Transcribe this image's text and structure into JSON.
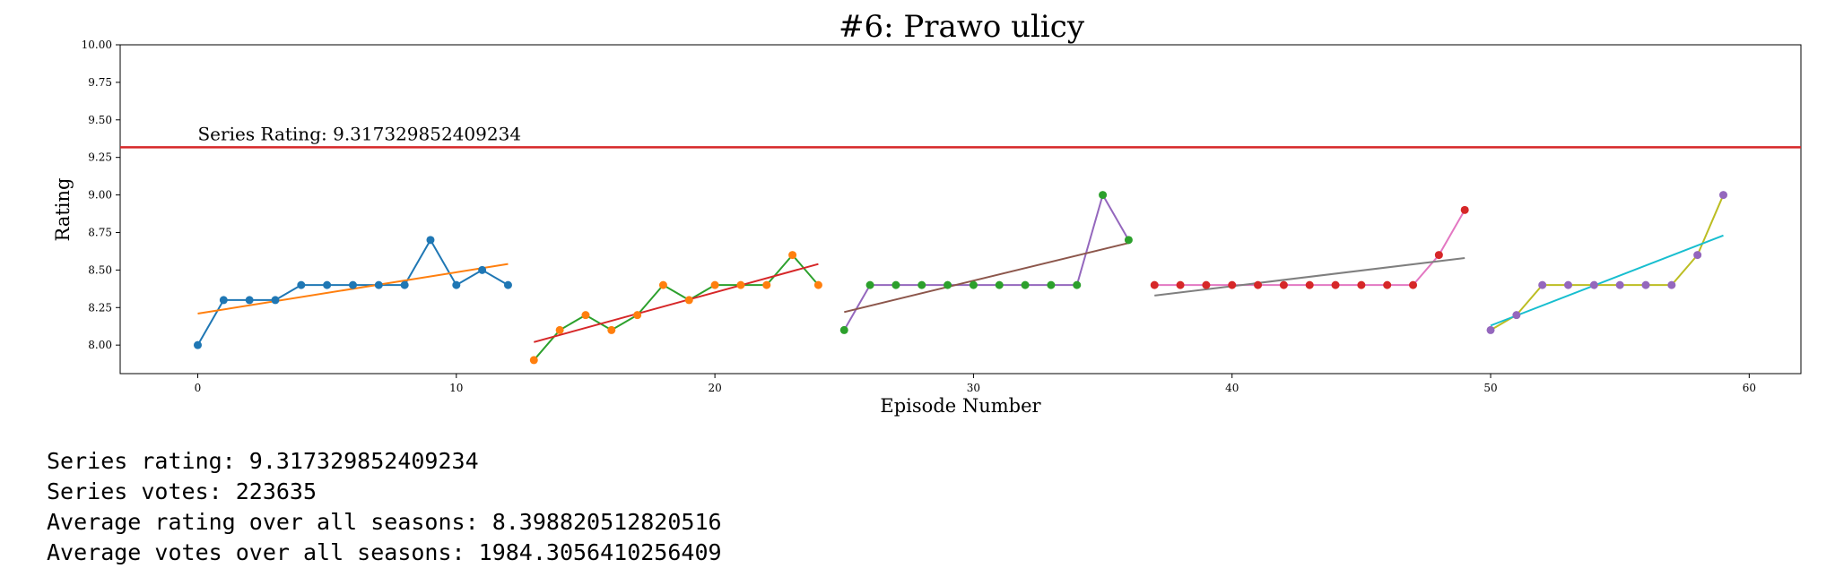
{
  "chart_data": {
    "type": "line",
    "title": "#6: Prawo ulicy",
    "xlabel": "Episode Number",
    "ylabel": "Rating",
    "xlim": [
      -3,
      62
    ],
    "ylim": [
      7.81,
      10.0
    ],
    "xticks": [
      0,
      10,
      20,
      30,
      40,
      50,
      60
    ],
    "yticks": [
      8.0,
      8.25,
      8.5,
      8.75,
      9.0,
      9.25,
      9.5,
      9.75,
      10.0
    ],
    "ytick_labels": [
      "8.00",
      "8.25",
      "8.50",
      "8.75",
      "9.00",
      "9.25",
      "9.50",
      "9.75",
      "10.00"
    ],
    "grid": false,
    "series_rating_line": {
      "value": 9.317329852409234,
      "label": "Series Rating: 9.317329852409234",
      "label_x": 0,
      "color": "#d62728"
    },
    "seasons": [
      {
        "x": [
          0,
          1,
          2,
          3,
          4,
          5,
          6,
          7,
          8,
          9,
          10,
          11,
          12
        ],
        "y": [
          8.0,
          8.3,
          8.3,
          8.3,
          8.4,
          8.4,
          8.4,
          8.4,
          8.4,
          8.7,
          8.4,
          8.5,
          8.4
        ],
        "line_color": "#1f77b4",
        "marker_color": "#1f77b4",
        "trend": {
          "x": [
            0,
            12
          ],
          "y": [
            8.21,
            8.54
          ],
          "color": "#ff7f0e"
        }
      },
      {
        "x": [
          13,
          14,
          15,
          16,
          17,
          18,
          19,
          20,
          21,
          22,
          23,
          24
        ],
        "y": [
          7.9,
          8.1,
          8.2,
          8.1,
          8.2,
          8.4,
          8.3,
          8.4,
          8.4,
          8.4,
          8.6,
          8.4
        ],
        "line_color": "#2ca02c",
        "marker_color": "#ff7f0e",
        "trend": {
          "x": [
            13,
            24
          ],
          "y": [
            8.02,
            8.54
          ],
          "color": "#d62728"
        }
      },
      {
        "x": [
          25,
          26,
          27,
          28,
          29,
          30,
          31,
          32,
          33,
          34,
          35,
          36
        ],
        "y": [
          8.1,
          8.4,
          8.4,
          8.4,
          8.4,
          8.4,
          8.4,
          8.4,
          8.4,
          8.4,
          9.0,
          8.7
        ],
        "line_color": "#9467bd",
        "marker_color": "#2ca02c",
        "trend": {
          "x": [
            25,
            36
          ],
          "y": [
            8.22,
            8.68
          ],
          "color": "#8c564b"
        }
      },
      {
        "x": [
          37,
          38,
          39,
          40,
          41,
          42,
          43,
          44,
          45,
          46,
          47,
          48,
          49
        ],
        "y": [
          8.4,
          8.4,
          8.4,
          8.4,
          8.4,
          8.4,
          8.4,
          8.4,
          8.4,
          8.4,
          8.4,
          8.6,
          8.9
        ],
        "line_color": "#e377c2",
        "marker_color": "#d62728",
        "trend": {
          "x": [
            37,
            49
          ],
          "y": [
            8.33,
            8.58
          ],
          "color": "#7f7f7f"
        }
      },
      {
        "x": [
          50,
          51,
          52,
          53,
          54,
          55,
          56,
          57,
          58,
          59
        ],
        "y": [
          8.1,
          8.2,
          8.4,
          8.4,
          8.4,
          8.4,
          8.4,
          8.4,
          8.6,
          9.0
        ],
        "line_color": "#bcbd22",
        "marker_color": "#9467bd",
        "trend": {
          "x": [
            50,
            59
          ],
          "y": [
            8.13,
            8.73
          ],
          "color": "#17becf"
        }
      }
    ]
  },
  "stats": {
    "series_rating": "Series rating: 9.317329852409234",
    "series_votes": "Series votes: 223635",
    "avg_rating": "Average rating over all seasons: 8.398820512820516",
    "avg_votes": "Average votes over all seasons: 1984.3056410256409"
  }
}
